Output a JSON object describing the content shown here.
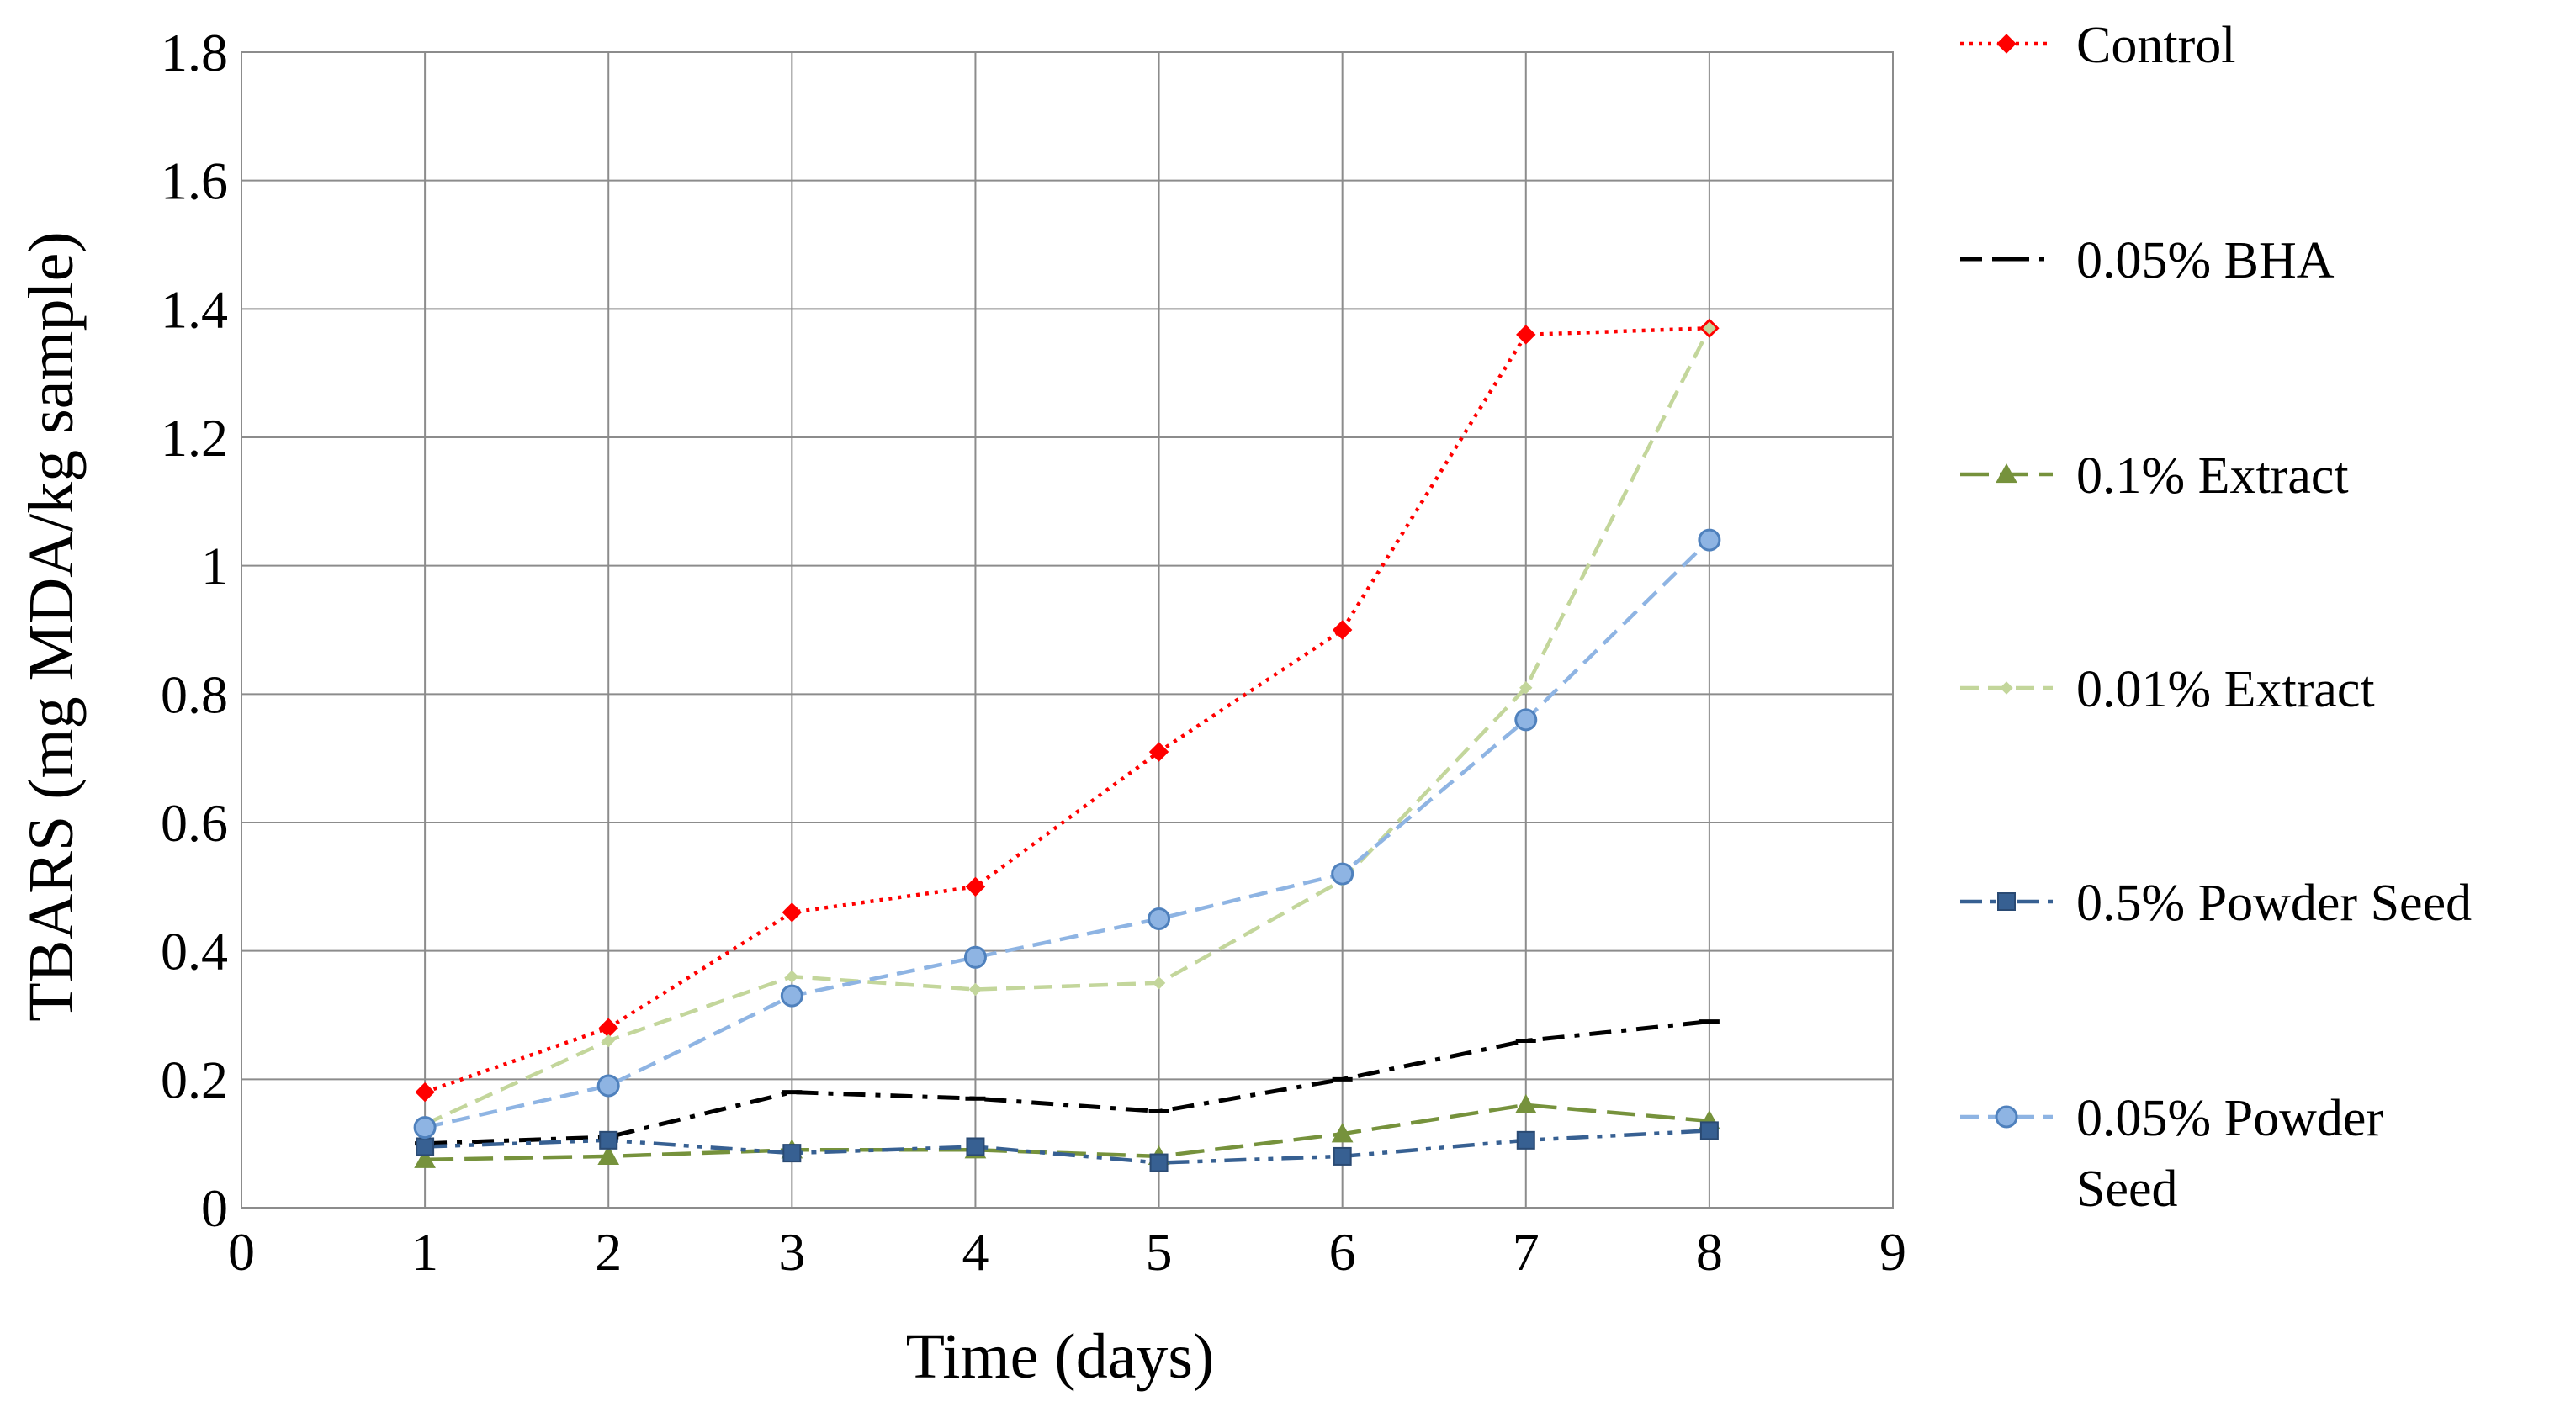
{
  "chart_data": {
    "type": "line",
    "title": "",
    "xlabel": "Time (days)",
    "ylabel": "TBARS (mg MDA/kg sample)",
    "xlim": [
      0,
      9
    ],
    "ylim": [
      0,
      1.8
    ],
    "x_ticks": [
      "0",
      "1",
      "2",
      "3",
      "4",
      "5",
      "6",
      "7",
      "8",
      "9"
    ],
    "y_ticks": [
      "0",
      "0.2",
      "0.4",
      "0.6",
      "0.8",
      "1",
      "1.2",
      "1.4",
      "1.6",
      "1.8"
    ],
    "grid": true,
    "legend_position": "right",
    "x": [
      1,
      2,
      3,
      4,
      5,
      6,
      7,
      8
    ],
    "series": [
      {
        "name": "Control",
        "color": "#ff0000",
        "dash": "dotted",
        "marker": "diamond",
        "values": [
          0.18,
          0.28,
          0.46,
          0.5,
          0.71,
          0.9,
          1.36,
          1.37
        ]
      },
      {
        "name": "0.05% BHA",
        "color": "#000000",
        "dash": "dashdot",
        "marker": "dash",
        "values": [
          0.1,
          0.11,
          0.18,
          0.17,
          0.15,
          0.2,
          0.26,
          0.29
        ]
      },
      {
        "name": "0.1% Extract",
        "color": "#76923c",
        "dash": "longdash",
        "marker": "triangle",
        "values": [
          0.075,
          0.08,
          0.09,
          0.09,
          0.08,
          0.115,
          0.16,
          0.135
        ]
      },
      {
        "name": "0.01% Extract",
        "color": "#c3d69b",
        "dash": "dashed",
        "marker": "small-diamond",
        "values": [
          0.13,
          0.26,
          0.36,
          0.34,
          0.35,
          0.51,
          0.81,
          1.37
        ]
      },
      {
        "name": "0.5% Powder Seed",
        "color": "#376092",
        "dash": "dashdotdot",
        "marker": "square",
        "values": [
          0.095,
          0.105,
          0.085,
          0.095,
          0.07,
          0.08,
          0.105,
          0.12
        ]
      },
      {
        "name": "0.05% Powder Seed",
        "color": "#8eb4e3",
        "dash": "dashed",
        "marker": "circle",
        "values": [
          0.125,
          0.19,
          0.33,
          0.39,
          0.45,
          0.52,
          0.76,
          1.04
        ]
      }
    ]
  }
}
